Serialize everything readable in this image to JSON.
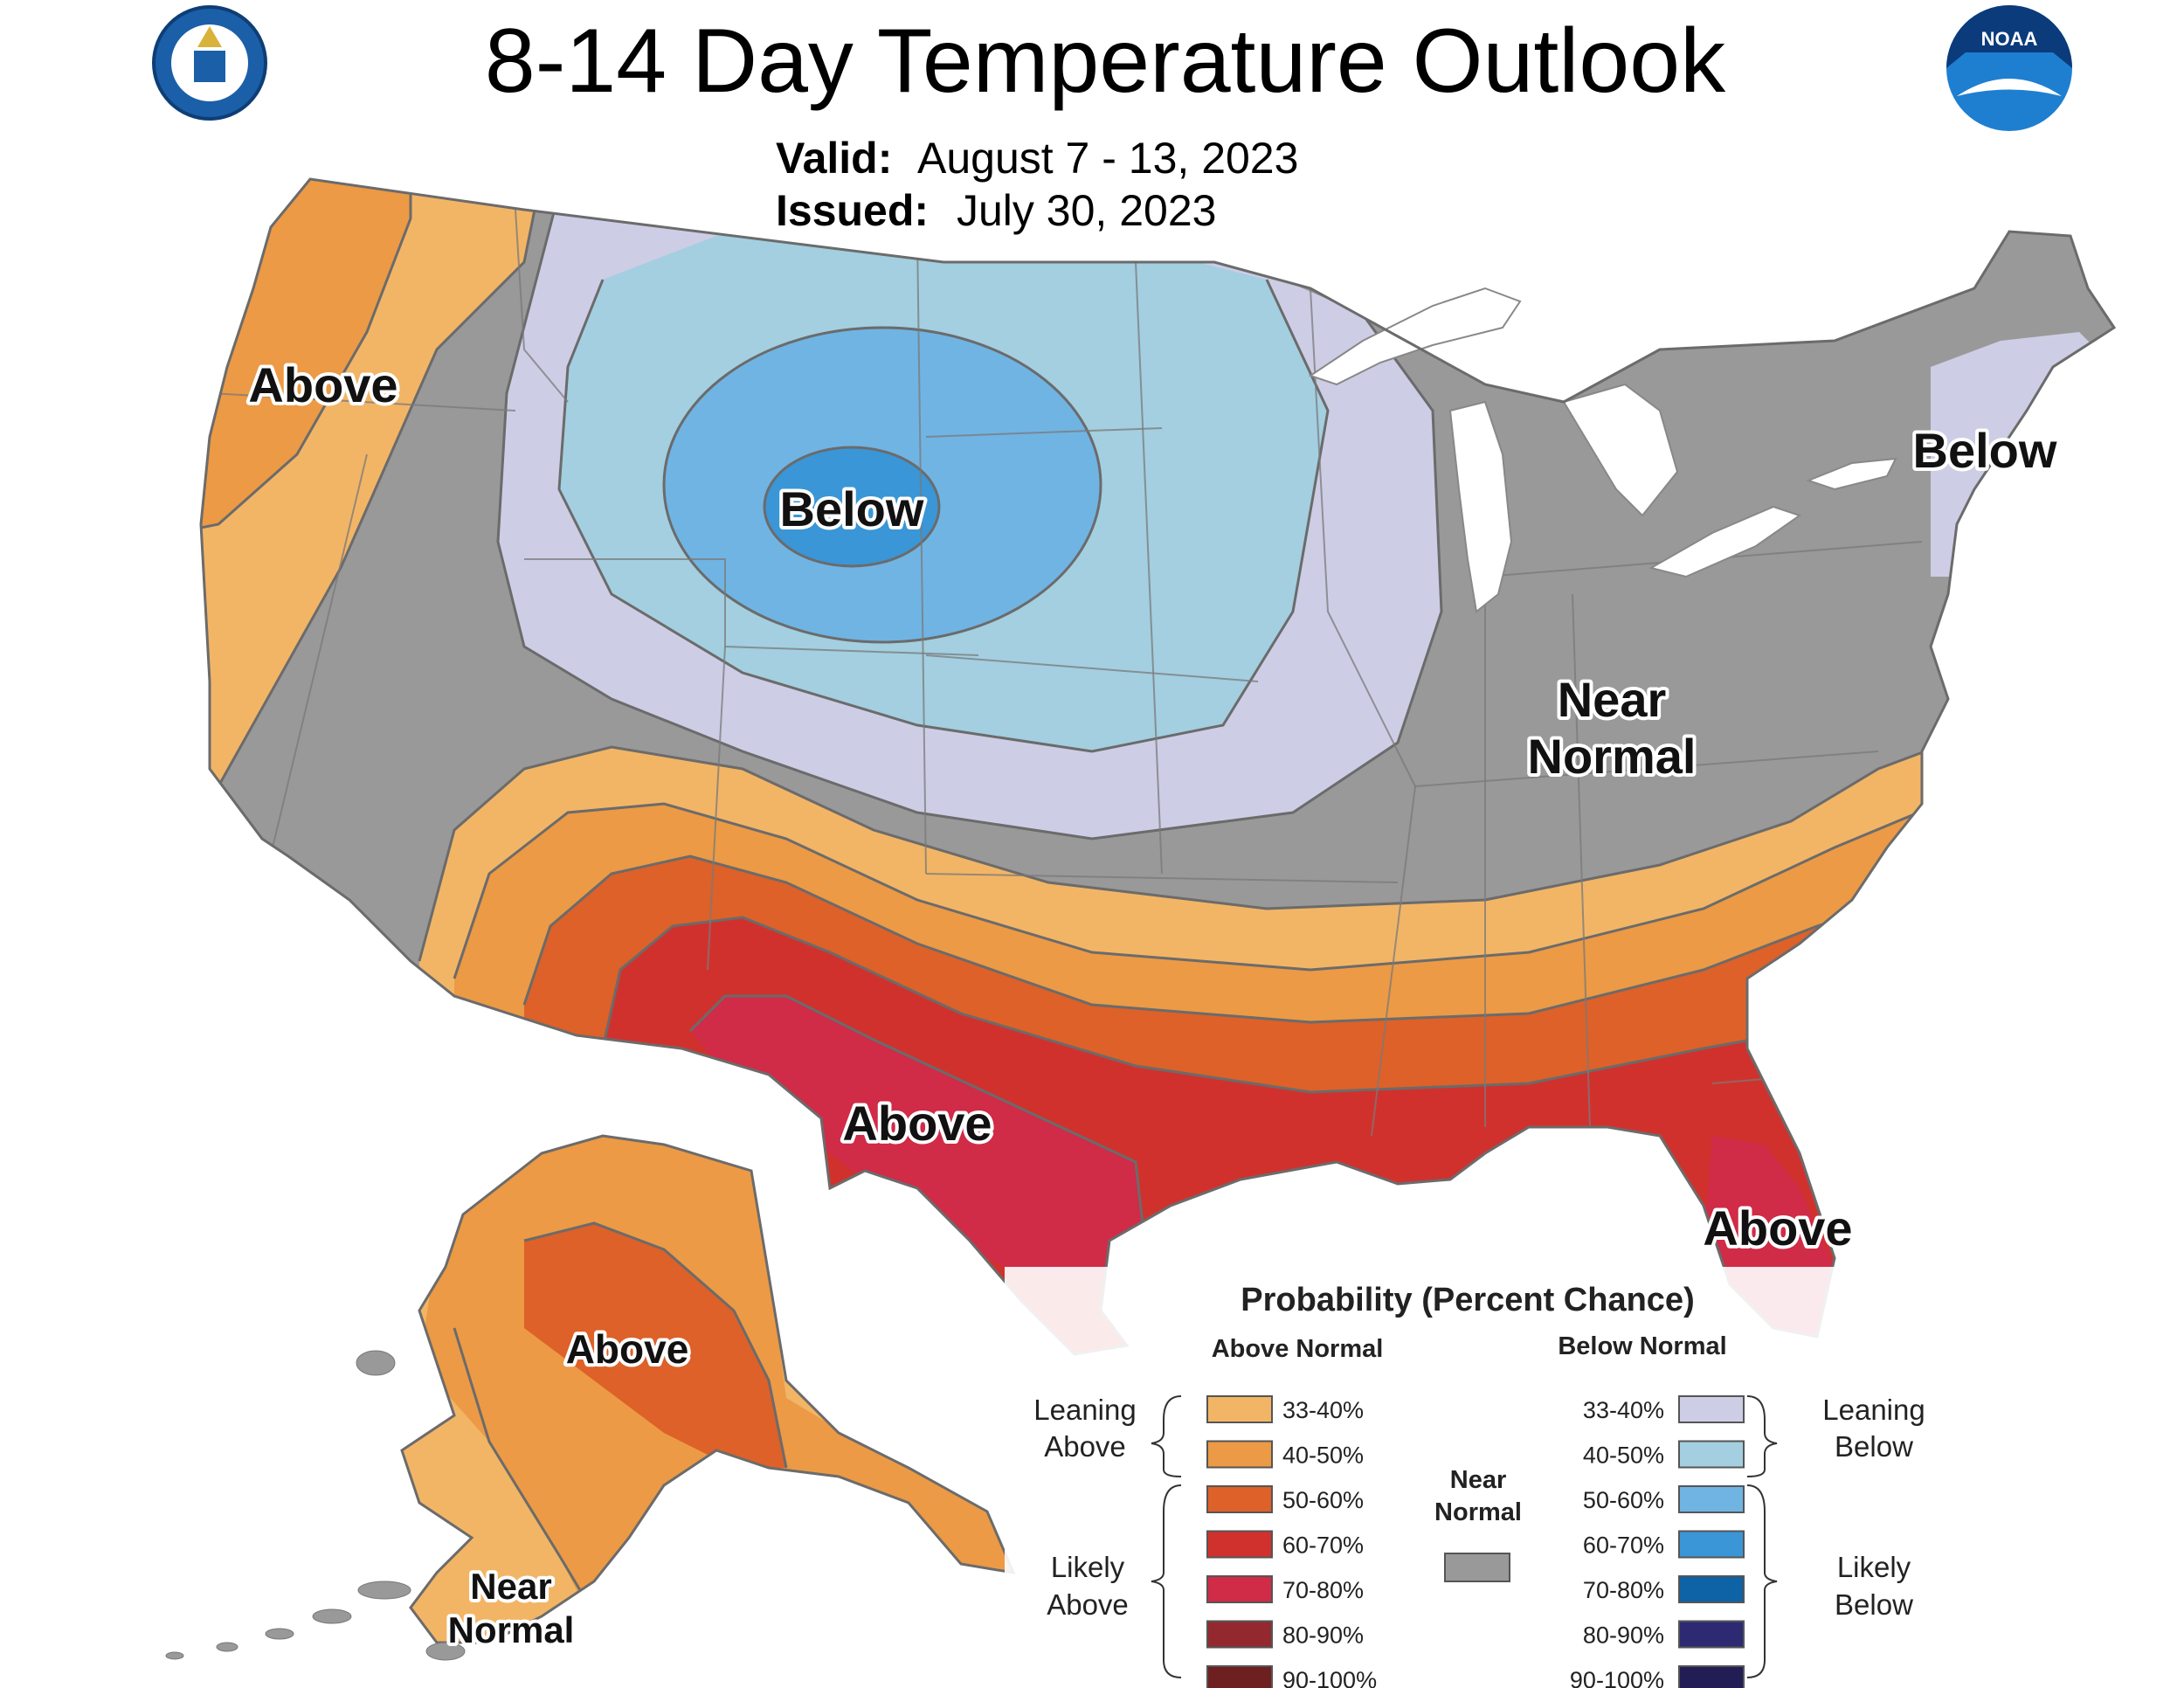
{
  "header": {
    "title": "8-14 Day Temperature Outlook",
    "valid_label": "Valid:",
    "valid_value": "August 7 - 13, 2023",
    "issued_label": "Issued:",
    "issued_value": "July 30, 2023",
    "noaa_logo_text": "NOAA"
  },
  "regions": {
    "west_coast": "Above",
    "north_plains": "Below",
    "new_england": "Below",
    "ohio_valley_line1": "Near",
    "ohio_valley_line2": "Normal",
    "south_central": "Above",
    "florida": "Above",
    "alaska": "Above",
    "alaska_sw_line1": "Near",
    "alaska_sw_line2": "Normal"
  },
  "legend": {
    "title": "Probability (Percent Chance)",
    "above_header": "Above Normal",
    "below_header": "Below Normal",
    "leaning_above": [
      "Leaning",
      "Above"
    ],
    "likely_above": [
      "Likely",
      "Above"
    ],
    "leaning_below": [
      "Leaning",
      "Below"
    ],
    "likely_below": [
      "Likely",
      "Below"
    ],
    "near_normal": [
      "Near",
      "Normal"
    ],
    "near_normal_color": "#999999",
    "above": [
      {
        "label": "33-40%",
        "color": "#f2b566"
      },
      {
        "label": "40-50%",
        "color": "#ec9a45"
      },
      {
        "label": "50-60%",
        "color": "#dd6128"
      },
      {
        "label": "60-70%",
        "color": "#d1312d"
      },
      {
        "label": "70-80%",
        "color": "#d02b47"
      },
      {
        "label": "80-90%",
        "color": "#93292f"
      },
      {
        "label": "90-100%",
        "color": "#6e2020"
      }
    ],
    "below": [
      {
        "label": "33-40%",
        "color": "#cdcde6"
      },
      {
        "label": "40-50%",
        "color": "#a3cfe0"
      },
      {
        "label": "50-60%",
        "color": "#70b4e3"
      },
      {
        "label": "60-70%",
        "color": "#3a96d6"
      },
      {
        "label": "70-80%",
        "color": "#0e62a6"
      },
      {
        "label": "80-90%",
        "color": "#2d2a73"
      },
      {
        "label": "90-100%",
        "color": "#221d55"
      }
    ]
  },
  "colors": {
    "near_normal": "#999999",
    "lean_above": "#f2b566",
    "above_40": "#ec9a45",
    "above_50": "#dd6128",
    "above_60": "#d1312d",
    "above_70": "#d02b47",
    "lean_below": "#cdcde6",
    "below_40": "#a3cfe0",
    "below_50": "#70b4e3",
    "below_60": "#3a96d6"
  }
}
